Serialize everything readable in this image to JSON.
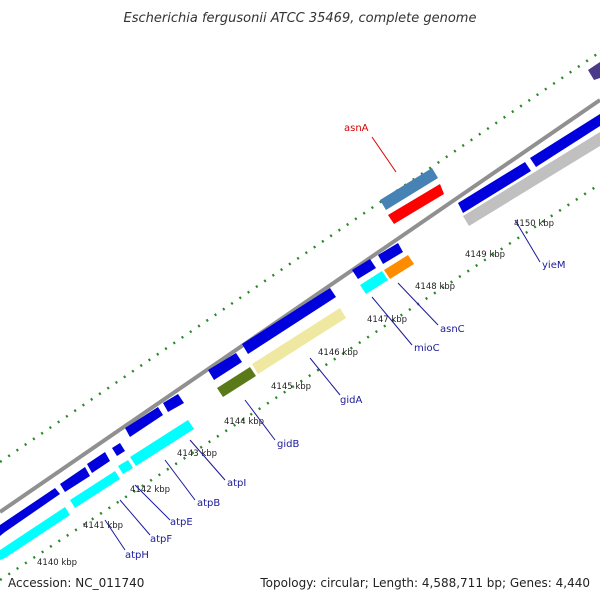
{
  "title": "Escherichia fergusonii ATCC 35469, complete genome",
  "footer": {
    "accession": "Accession: NC_011740",
    "summary": "Topology: circular; Length: 4,588,711 bp; Genes: 4,440"
  },
  "colors": {
    "backbone": "#808080",
    "gc_skew_dots": "#2a8a2a",
    "label_blue": "#1a1a9a",
    "label_red": "#dd0000",
    "cds_forward": "#0000dd",
    "cds_reverse": "#00ffff",
    "rna": "#4682b4",
    "other": "#ff0000"
  },
  "ticks": [
    {
      "label": "4140 kbp"
    },
    {
      "label": "4141 kbp"
    },
    {
      "label": "4142 kbp"
    },
    {
      "label": "4143 kbp"
    },
    {
      "label": "4144 kbp"
    },
    {
      "label": "4145 kbp"
    },
    {
      "label": "4146 kbp"
    },
    {
      "label": "4147 kbp"
    },
    {
      "label": "4148 kbp"
    },
    {
      "label": "4149 kbp"
    },
    {
      "label": "4150 kbp"
    }
  ],
  "gene_labels": [
    {
      "name": "atpH",
      "color": "#1a1a9a"
    },
    {
      "name": "atpF",
      "color": "#1a1a9a"
    },
    {
      "name": "atpE",
      "color": "#1a1a9a"
    },
    {
      "name": "atpB",
      "color": "#1a1a9a"
    },
    {
      "name": "atpI",
      "color": "#1a1a9a"
    },
    {
      "name": "gidB",
      "color": "#1a1a9a"
    },
    {
      "name": "gidA",
      "color": "#1a1a9a"
    },
    {
      "name": "mioC",
      "color": "#1a1a9a"
    },
    {
      "name": "asnC",
      "color": "#1a1a9a"
    },
    {
      "name": "yieM",
      "color": "#1a1a9a"
    },
    {
      "name": "asnA",
      "color": "#dd0000"
    }
  ]
}
